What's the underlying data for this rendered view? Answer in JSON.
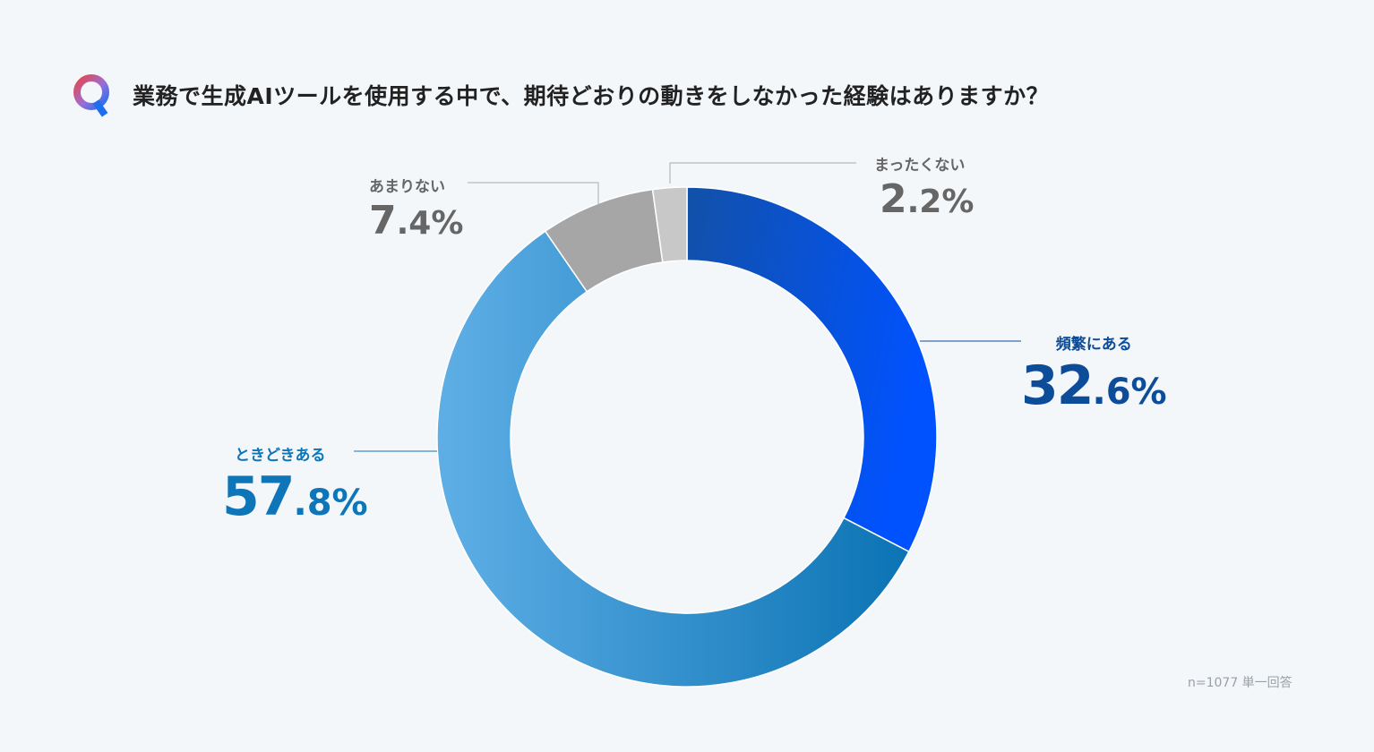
{
  "question": {
    "text": "業務で生成AIツールを使用する中で、期待どおりの動きをしなかった経験はありますか？",
    "icon": "q-icon",
    "icon_letter": "Q"
  },
  "note": "n=1077 単一回答",
  "chart_data": {
    "type": "pie",
    "style": "donut",
    "title": "業務で生成AIツールを使用する中で、期待どおりの動きをしなかった経験はありますか？",
    "unit": "%",
    "slices": [
      {
        "label": "頻繁にある",
        "value": 32.6,
        "int": "32",
        "frac": ".6",
        "color_start": "#1251a8",
        "color_end": "#0052ff",
        "label_color": "#0d4c99"
      },
      {
        "label": "ときどきある",
        "value": 57.8,
        "int": "57",
        "frac": ".8",
        "color_start": "#5fafe6",
        "color_end": "#0b73b4",
        "label_color": "#0e76b8"
      },
      {
        "label": "あまりない",
        "value": 7.4,
        "int": "7",
        "frac": ".4",
        "color_start": "#a6a6a6",
        "color_end": "#a6a6a6",
        "label_color": "#666666"
      },
      {
        "label": "まったくない",
        "value": 2.2,
        "int": "2",
        "frac": ".2",
        "color_start": "#c8c8c8",
        "color_end": "#c8c8c8",
        "label_color": "#666666"
      }
    ],
    "sample_size": 1077,
    "answer_type": "単一回答"
  }
}
